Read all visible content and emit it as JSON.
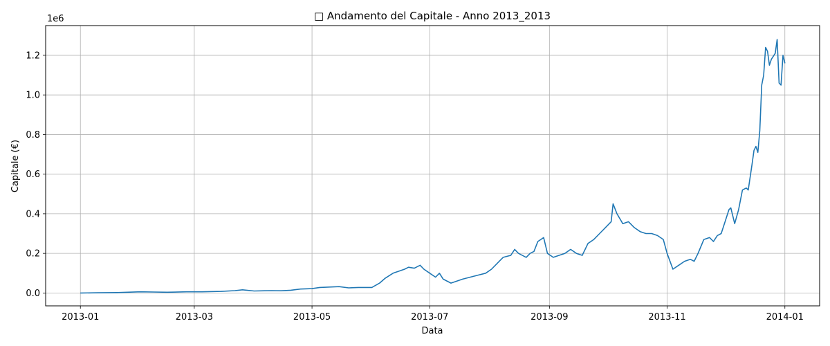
{
  "chart_data": {
    "type": "line",
    "title": "□ Andamento del Capitale - Anno 2013_2013",
    "xlabel": "Data",
    "ylabel": "Capitale (€)",
    "y_offset_label": "1e6",
    "grid": true,
    "xlim": [
      "2012-12-14",
      "2014-01-19"
    ],
    "ylim": [
      -0.065,
      1.35
    ],
    "x_ticks": [
      "2013-01-01",
      "2013-03-01",
      "2013-05-01",
      "2013-07-01",
      "2013-09-01",
      "2013-11-01",
      "2014-01-01"
    ],
    "x_tick_labels": [
      "2013-01",
      "2013-03",
      "2013-05",
      "2013-07",
      "2013-09",
      "2013-11",
      "2014-01"
    ],
    "y_ticks": [
      0.0,
      0.2,
      0.4,
      0.6,
      0.8,
      1.0,
      1.2
    ],
    "y_tick_labels": [
      "0.0",
      "0.2",
      "0.4",
      "0.6",
      "0.8",
      "1.0",
      "1.2"
    ],
    "series": [
      {
        "color": "#1f77b4",
        "x": [
          "2013-01-01",
          "2013-01-10",
          "2013-01-20",
          "2013-02-01",
          "2013-02-08",
          "2013-02-15",
          "2013-02-25",
          "2013-03-05",
          "2013-03-15",
          "2013-03-22",
          "2013-03-26",
          "2013-04-01",
          "2013-04-10",
          "2013-04-15",
          "2013-04-20",
          "2013-04-25",
          "2013-05-01",
          "2013-05-05",
          "2013-05-10",
          "2013-05-15",
          "2013-05-20",
          "2013-05-25",
          "2013-06-01",
          "2013-06-05",
          "2013-06-08",
          "2013-06-12",
          "2013-06-15",
          "2013-06-18",
          "2013-06-20",
          "2013-06-23",
          "2013-06-26",
          "2013-06-28",
          "2013-07-01",
          "2013-07-04",
          "2013-07-06",
          "2013-07-08",
          "2013-07-12",
          "2013-07-15",
          "2013-07-18",
          "2013-07-22",
          "2013-07-26",
          "2013-07-30",
          "2013-08-02",
          "2013-08-06",
          "2013-08-08",
          "2013-08-12",
          "2013-08-14",
          "2013-08-16",
          "2013-08-20",
          "2013-08-22",
          "2013-08-24",
          "2013-08-26",
          "2013-08-29",
          "2013-08-31",
          "2013-09-03",
          "2013-09-06",
          "2013-09-09",
          "2013-09-12",
          "2013-09-15",
          "2013-09-18",
          "2013-09-21",
          "2013-09-24",
          "2013-09-27",
          "2013-09-30",
          "2013-10-03",
          "2013-10-04",
          "2013-10-06",
          "2013-10-09",
          "2013-10-12",
          "2013-10-15",
          "2013-10-18",
          "2013-10-21",
          "2013-10-24",
          "2013-10-27",
          "2013-10-30",
          "2013-11-01",
          "2013-11-04",
          "2013-11-07",
          "2013-11-10",
          "2013-11-13",
          "2013-11-15",
          "2013-11-17",
          "2013-11-20",
          "2013-11-23",
          "2013-11-25",
          "2013-11-27",
          "2013-11-29",
          "2013-12-01",
          "2013-12-03",
          "2013-12-04",
          "2013-12-06",
          "2013-12-08",
          "2013-12-10",
          "2013-12-12",
          "2013-12-13",
          "2013-12-15",
          "2013-12-16",
          "2013-12-17",
          "2013-12-18",
          "2013-12-19",
          "2013-12-20",
          "2013-12-21",
          "2013-12-22",
          "2013-12-23",
          "2013-12-24",
          "2013-12-25",
          "2013-12-27",
          "2013-12-28",
          "2013-12-29",
          "2013-12-30",
          "2013-12-31",
          "2014-01-01"
        ],
        "y": [
          0.0,
          0.001,
          0.002,
          0.006,
          0.005,
          0.004,
          0.006,
          0.006,
          0.008,
          0.012,
          0.016,
          0.01,
          0.012,
          0.011,
          0.014,
          0.02,
          0.022,
          0.028,
          0.03,
          0.032,
          0.026,
          0.028,
          0.028,
          0.05,
          0.075,
          0.1,
          0.11,
          0.12,
          0.13,
          0.125,
          0.14,
          0.12,
          0.1,
          0.08,
          0.1,
          0.07,
          0.05,
          0.06,
          0.07,
          0.08,
          0.09,
          0.1,
          0.12,
          0.16,
          0.18,
          0.19,
          0.22,
          0.2,
          0.18,
          0.2,
          0.21,
          0.26,
          0.28,
          0.2,
          0.18,
          0.19,
          0.2,
          0.22,
          0.2,
          0.19,
          0.25,
          0.27,
          0.3,
          0.33,
          0.36,
          0.45,
          0.4,
          0.35,
          0.36,
          0.33,
          0.31,
          0.3,
          0.3,
          0.29,
          0.27,
          0.2,
          0.12,
          0.14,
          0.16,
          0.17,
          0.16,
          0.2,
          0.27,
          0.28,
          0.26,
          0.29,
          0.3,
          0.36,
          0.42,
          0.43,
          0.35,
          0.42,
          0.52,
          0.53,
          0.52,
          0.65,
          0.72,
          0.74,
          0.71,
          0.82,
          1.05,
          1.1,
          1.24,
          1.22,
          1.15,
          1.18,
          1.21,
          1.28,
          1.06,
          1.05,
          1.2,
          1.16
        ]
      }
    ]
  }
}
